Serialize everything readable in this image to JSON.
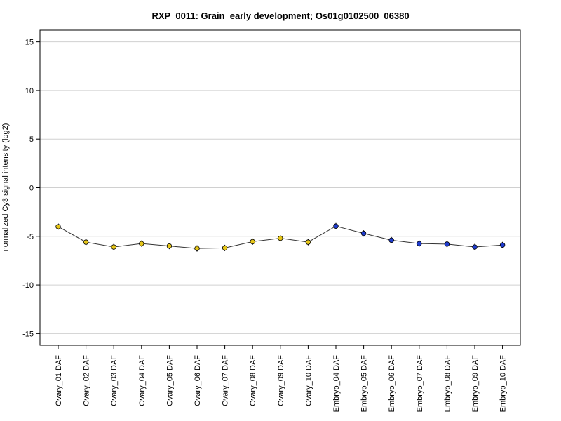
{
  "chart_data": {
    "type": "line",
    "title": "RXP_0011: Grain_early development; Os01g0102500_06380",
    "xlabel": "",
    "ylabel": "normalized Cy3 signal intensity (log2)",
    "ylim": [
      -16.2,
      16.2
    ],
    "yticks": [
      -15,
      -10,
      -5,
      0,
      5,
      10,
      15
    ],
    "grid": true,
    "categories": [
      "Ovary_01 DAF",
      "Ovary_02 DAF",
      "Ovary_03 DAF",
      "Ovary_04 DAF",
      "Ovary_05 DAF",
      "Ovary_06 DAF",
      "Ovary_07 DAF",
      "Ovary_08 DAF",
      "Ovary_09 DAF",
      "Ovary_10 DAF",
      "Embryo_04 DAF",
      "Embryo_05 DAF",
      "Embryo_06 DAF",
      "Embryo_07 DAF",
      "Embryo_08 DAF",
      "Embryo_09 DAF",
      "Embryo_10 DAF"
    ],
    "values": [
      -4.0,
      -5.6,
      -6.1,
      -5.75,
      -6.0,
      -6.25,
      -6.2,
      -5.55,
      -5.2,
      -5.6,
      -3.95,
      -4.7,
      -5.4,
      -5.75,
      -5.8,
      -6.1,
      -5.9
    ],
    "point_colors": [
      "#e6c619",
      "#e6c619",
      "#e6c619",
      "#e6c619",
      "#e6c619",
      "#e6c619",
      "#e6c619",
      "#e6c619",
      "#e6c619",
      "#e6c619",
      "#1f3ccf",
      "#1f3ccf",
      "#1f3ccf",
      "#1f3ccf",
      "#1f3ccf",
      "#1f3ccf",
      "#1f3ccf"
    ],
    "line_color": "#333333",
    "grid_color": "#d0d0d0"
  }
}
